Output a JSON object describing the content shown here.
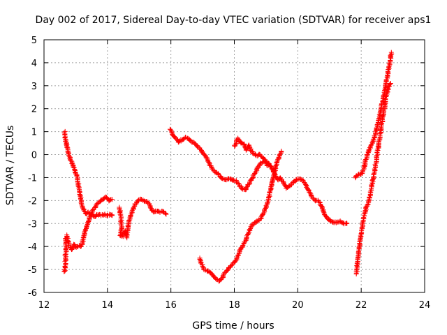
{
  "chart_data": {
    "type": "scatter",
    "title": "Day 002 of 2017, Sidereal Day-to-day VTEC variation (SDTVAR) for receiver aps1",
    "xlabel": "GPS time / hours",
    "ylabel": "SDTVAR / TECUs",
    "xlim": [
      12,
      24
    ],
    "ylim": [
      -6,
      5
    ],
    "xticks": [
      12,
      14,
      16,
      18,
      20,
      22,
      24
    ],
    "yticks": [
      -6,
      -5,
      -4,
      -3,
      -2,
      -1,
      0,
      1,
      2,
      3,
      4,
      5
    ],
    "grid": true,
    "marker": "plus",
    "color": "#ff0000",
    "series": [
      {
        "points": [
          [
            12.65,
            1.0
          ],
          [
            12.68,
            0.6
          ],
          [
            12.72,
            0.35
          ],
          [
            12.78,
            0.05
          ],
          [
            12.83,
            -0.2
          ],
          [
            12.9,
            -0.45
          ],
          [
            12.98,
            -0.7
          ],
          [
            13.05,
            -1.0
          ],
          [
            13.1,
            -1.4
          ],
          [
            13.15,
            -1.8
          ],
          [
            13.2,
            -2.2
          ],
          [
            13.25,
            -2.4
          ],
          [
            13.32,
            -2.6
          ],
          [
            13.4,
            -2.5
          ],
          [
            13.5,
            -2.65
          ],
          [
            13.6,
            -2.7
          ],
          [
            13.7,
            -2.6
          ],
          [
            13.8,
            -2.65
          ],
          [
            13.9,
            -2.6
          ],
          [
            14.0,
            -2.65
          ],
          [
            14.1,
            -2.6
          ],
          [
            14.15,
            -2.65
          ]
        ]
      },
      {
        "points": [
          [
            12.65,
            -5.1
          ],
          [
            12.67,
            -4.8
          ],
          [
            12.68,
            -4.4
          ],
          [
            12.7,
            -4.0
          ],
          [
            12.68,
            -3.7
          ],
          [
            12.72,
            -3.5
          ],
          [
            12.75,
            -3.75
          ],
          [
            12.8,
            -3.95
          ],
          [
            12.88,
            -4.15
          ],
          [
            12.95,
            -3.9
          ],
          [
            13.02,
            -4.05
          ],
          [
            13.1,
            -3.95
          ],
          [
            13.18,
            -4.0
          ],
          [
            13.25,
            -3.6
          ],
          [
            13.3,
            -3.3
          ],
          [
            13.38,
            -3.0
          ],
          [
            13.45,
            -2.7
          ],
          [
            13.55,
            -2.4
          ],
          [
            13.65,
            -2.2
          ],
          [
            13.75,
            -2.05
          ],
          [
            13.85,
            -1.95
          ],
          [
            13.95,
            -1.85
          ],
          [
            14.05,
            -2.0
          ],
          [
            14.15,
            -1.95
          ]
        ]
      },
      {
        "points": [
          [
            14.38,
            -2.3
          ],
          [
            14.42,
            -2.7
          ],
          [
            14.45,
            -3.2
          ],
          [
            14.4,
            -3.5
          ],
          [
            14.48,
            -3.55
          ],
          [
            14.55,
            -3.3
          ],
          [
            14.6,
            -3.6
          ],
          [
            14.65,
            -3.1
          ],
          [
            14.72,
            -2.7
          ],
          [
            14.8,
            -2.4
          ],
          [
            14.88,
            -2.15
          ],
          [
            14.95,
            -2.0
          ],
          [
            15.05,
            -1.95
          ],
          [
            15.15,
            -2.0
          ],
          [
            15.25,
            -2.05
          ],
          [
            15.35,
            -2.25
          ],
          [
            15.45,
            -2.5
          ],
          [
            15.55,
            -2.45
          ],
          [
            15.65,
            -2.5
          ],
          [
            15.75,
            -2.45
          ],
          [
            15.85,
            -2.6
          ]
        ]
      },
      {
        "points": [
          [
            15.98,
            1.1
          ],
          [
            16.05,
            0.9
          ],
          [
            16.15,
            0.7
          ],
          [
            16.25,
            0.55
          ],
          [
            16.35,
            0.65
          ],
          [
            16.45,
            0.75
          ],
          [
            16.55,
            0.7
          ],
          [
            16.65,
            0.55
          ],
          [
            16.75,
            0.5
          ],
          [
            16.85,
            0.35
          ],
          [
            16.95,
            0.2
          ],
          [
            17.05,
            0.0
          ],
          [
            17.15,
            -0.2
          ],
          [
            17.25,
            -0.5
          ],
          [
            17.35,
            -0.7
          ],
          [
            17.45,
            -0.8
          ],
          [
            17.55,
            -0.95
          ],
          [
            17.65,
            -1.05
          ],
          [
            17.75,
            -1.1
          ],
          [
            17.85,
            -1.05
          ],
          [
            17.95,
            -1.1
          ],
          [
            18.05,
            -1.15
          ],
          [
            18.15,
            -1.3
          ],
          [
            18.25,
            -1.5
          ],
          [
            18.35,
            -1.55
          ],
          [
            18.45,
            -1.3
          ],
          [
            18.55,
            -1.05
          ],
          [
            18.65,
            -0.8
          ],
          [
            18.75,
            -0.55
          ],
          [
            18.85,
            -0.35
          ],
          [
            18.95,
            -0.3
          ],
          [
            19.05,
            -0.35
          ],
          [
            19.1,
            -0.4
          ],
          [
            19.15,
            -0.5
          ],
          [
            19.22,
            -0.7
          ],
          [
            19.3,
            -0.95
          ],
          [
            19.38,
            -1.1
          ],
          [
            19.45,
            -1.0
          ],
          [
            19.55,
            -1.25
          ],
          [
            19.65,
            -1.45
          ],
          [
            19.75,
            -1.35
          ],
          [
            19.85,
            -1.2
          ],
          [
            19.95,
            -1.1
          ],
          [
            20.05,
            -1.05
          ],
          [
            20.15,
            -1.1
          ],
          [
            20.25,
            -1.3
          ],
          [
            20.35,
            -1.6
          ],
          [
            20.45,
            -1.85
          ],
          [
            20.55,
            -2.0
          ],
          [
            20.65,
            -2.0
          ],
          [
            20.75,
            -2.25
          ],
          [
            20.85,
            -2.6
          ],
          [
            20.95,
            -2.8
          ],
          [
            21.05,
            -2.9
          ],
          [
            21.15,
            -2.95
          ],
          [
            21.25,
            -2.95
          ],
          [
            21.35,
            -2.9
          ],
          [
            21.45,
            -3.0
          ],
          [
            21.55,
            -3.0
          ]
        ]
      },
      {
        "points": [
          [
            16.9,
            -4.5
          ],
          [
            16.95,
            -4.7
          ],
          [
            17.0,
            -4.85
          ],
          [
            17.05,
            -5.0
          ],
          [
            17.15,
            -5.05
          ],
          [
            17.25,
            -5.15
          ],
          [
            17.35,
            -5.3
          ],
          [
            17.45,
            -5.45
          ],
          [
            17.55,
            -5.5
          ],
          [
            17.62,
            -5.35
          ],
          [
            17.7,
            -5.15
          ],
          [
            17.8,
            -5.0
          ],
          [
            17.9,
            -4.85
          ],
          [
            18.0,
            -4.7
          ],
          [
            18.08,
            -4.55
          ],
          [
            18.15,
            -4.25
          ],
          [
            18.25,
            -4.0
          ],
          [
            18.35,
            -3.75
          ],
          [
            18.45,
            -3.4
          ],
          [
            18.55,
            -3.1
          ],
          [
            18.65,
            -2.95
          ],
          [
            18.75,
            -2.9
          ],
          [
            18.85,
            -2.75
          ],
          [
            18.95,
            -2.45
          ],
          [
            19.05,
            -2.1
          ],
          [
            19.1,
            -1.8
          ],
          [
            19.15,
            -1.5
          ],
          [
            19.2,
            -1.2
          ],
          [
            19.25,
            -0.9
          ],
          [
            19.3,
            -0.6
          ],
          [
            19.35,
            -0.3
          ],
          [
            19.42,
            -0.05
          ],
          [
            19.48,
            0.15
          ]
        ]
      },
      {
        "points": [
          [
            18.0,
            0.35
          ],
          [
            18.05,
            0.5
          ],
          [
            18.1,
            0.7
          ],
          [
            18.15,
            0.6
          ],
          [
            18.2,
            0.55
          ],
          [
            18.3,
            0.45
          ],
          [
            18.38,
            0.2
          ],
          [
            18.45,
            0.4
          ],
          [
            18.52,
            0.2
          ],
          [
            18.6,
            0.05
          ],
          [
            18.7,
            -0.05
          ],
          [
            18.8,
            0.0
          ],
          [
            18.88,
            -0.1
          ],
          [
            18.95,
            -0.2
          ],
          [
            19.0,
            -0.35
          ],
          [
            19.05,
            -0.5
          ],
          [
            19.1,
            -0.4
          ]
        ]
      },
      {
        "points": [
          [
            21.85,
            -5.2
          ],
          [
            21.88,
            -4.8
          ],
          [
            21.92,
            -4.3
          ],
          [
            21.96,
            -3.8
          ],
          [
            22.0,
            -3.4
          ],
          [
            22.05,
            -3.0
          ],
          [
            22.1,
            -2.6
          ],
          [
            22.16,
            -2.3
          ],
          [
            22.22,
            -2.1
          ],
          [
            22.28,
            -1.75
          ],
          [
            22.34,
            -1.3
          ],
          [
            22.4,
            -0.85
          ],
          [
            22.46,
            -0.35
          ],
          [
            22.52,
            0.15
          ],
          [
            22.58,
            0.7
          ],
          [
            22.64,
            1.25
          ],
          [
            22.7,
            1.8
          ],
          [
            22.76,
            2.3
          ],
          [
            22.82,
            2.75
          ],
          [
            22.88,
            3.0
          ],
          [
            22.93,
            3.1
          ]
        ]
      },
      {
        "points": [
          [
            21.8,
            -1.0
          ],
          [
            21.88,
            -0.9
          ],
          [
            21.96,
            -0.85
          ],
          [
            22.04,
            -0.8
          ],
          [
            22.1,
            -0.5
          ],
          [
            22.16,
            -0.15
          ],
          [
            22.22,
            0.1
          ],
          [
            22.3,
            0.35
          ],
          [
            22.38,
            0.6
          ],
          [
            22.45,
            0.9
          ],
          [
            22.52,
            1.3
          ],
          [
            22.58,
            1.7
          ],
          [
            22.64,
            2.1
          ],
          [
            22.7,
            2.5
          ],
          [
            22.76,
            2.9
          ],
          [
            22.8,
            3.2
          ],
          [
            22.85,
            3.6
          ],
          [
            22.9,
            4.0
          ],
          [
            22.95,
            4.45
          ]
        ]
      }
    ]
  }
}
